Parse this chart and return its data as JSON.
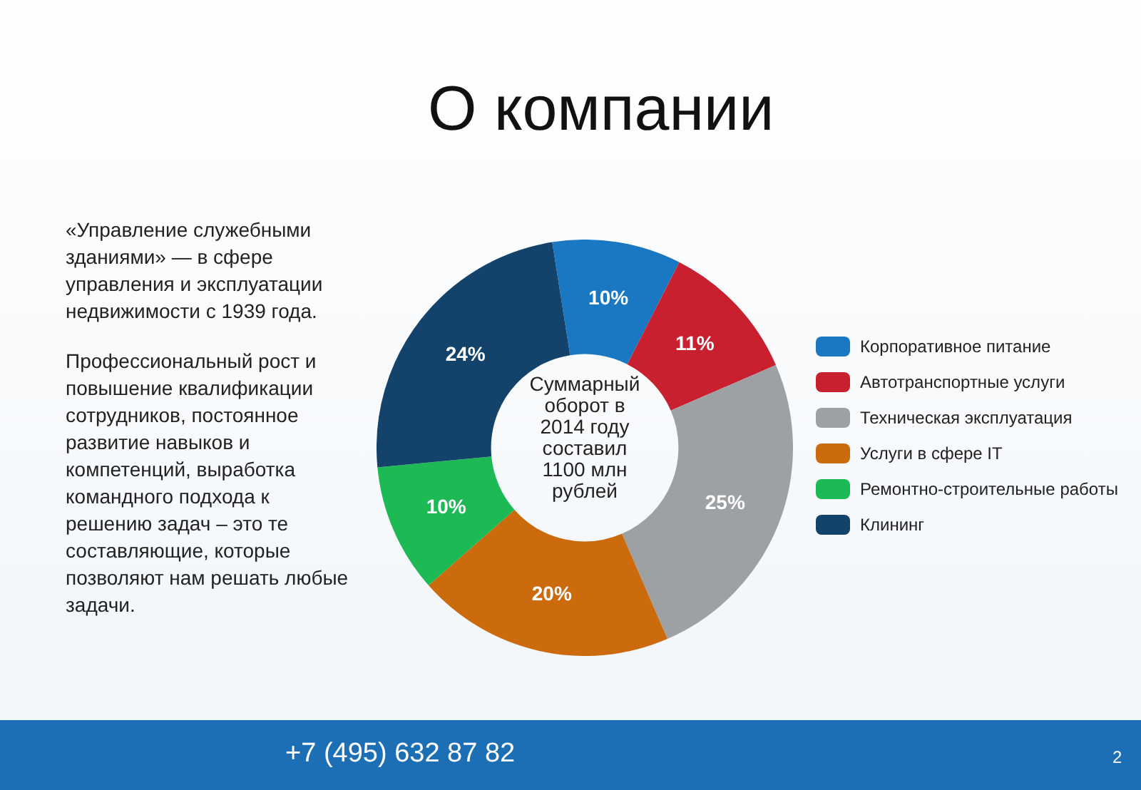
{
  "chart_data": {
    "type": "donut",
    "title": "О компании",
    "categories": [
      "Корпоративное питание",
      "Автотранспортные услуги",
      "Техническая эксплуатация",
      "Услуги в сфере IT",
      "Ремонтно-строительные работы",
      "Клининг"
    ],
    "values": [
      10,
      11,
      25,
      20,
      10,
      24
    ],
    "value_labels": [
      "10%",
      "11%",
      "25%",
      "20%",
      "10%",
      "24%"
    ],
    "colors": [
      "#1a78c2",
      "#c8202f",
      "#9ea1a4",
      "#cc6a0e",
      "#1db954",
      "#13426b"
    ],
    "legend": "right",
    "annotations": [
      "«Управление служебными зданиями» — в сфере управления и эксплуатации недвижимости с 1939 года.",
      "Профессиональный рост и повышение квалификации сотрудников, постоянное развитие навыков и компетенций, выработка командного подхода к решению задач – это те составляющие, которые позволяют нам решать любые задачи.",
      "Суммарный оборот в 2014 году составил 1100 млн рублей",
      "+7 (495) 632 87 82",
      "2"
    ]
  }
}
